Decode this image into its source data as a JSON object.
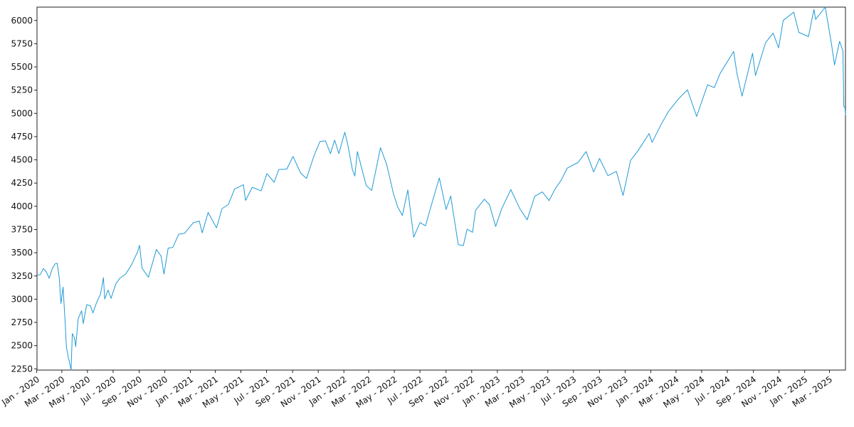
{
  "chart_data": {
    "type": "line",
    "title": "",
    "xlabel": "",
    "ylabel": "",
    "x_range": [
      "2020-01-02",
      "2025-04-08"
    ],
    "ylim": [
      2237,
      6144
    ],
    "y_ticks": [
      2250,
      2500,
      2750,
      3000,
      3250,
      3500,
      3750,
      4000,
      4250,
      4500,
      4750,
      5000,
      5250,
      5500,
      5750,
      6000
    ],
    "x_ticks": [
      {
        "date": "2020-01-01",
        "label": "Jan - 2020"
      },
      {
        "date": "2020-03-01",
        "label": "Mar - 2020"
      },
      {
        "date": "2020-05-01",
        "label": "May - 2020"
      },
      {
        "date": "2020-07-01",
        "label": "Jul - 2020"
      },
      {
        "date": "2020-09-01",
        "label": "Sep - 2020"
      },
      {
        "date": "2020-11-01",
        "label": "Nov - 2020"
      },
      {
        "date": "2021-01-01",
        "label": "Jan - 2021"
      },
      {
        "date": "2021-03-01",
        "label": "Mar - 2021"
      },
      {
        "date": "2021-05-01",
        "label": "May - 2021"
      },
      {
        "date": "2021-07-01",
        "label": "Jul - 2021"
      },
      {
        "date": "2021-09-01",
        "label": "Sep - 2021"
      },
      {
        "date": "2021-11-01",
        "label": "Nov - 2021"
      },
      {
        "date": "2022-01-01",
        "label": "Jan - 2022"
      },
      {
        "date": "2022-03-01",
        "label": "Mar - 2022"
      },
      {
        "date": "2022-05-01",
        "label": "May - 2022"
      },
      {
        "date": "2022-07-01",
        "label": "Jul - 2022"
      },
      {
        "date": "2022-09-01",
        "label": "Sep - 2022"
      },
      {
        "date": "2022-11-01",
        "label": "Nov - 2022"
      },
      {
        "date": "2023-01-01",
        "label": "Jan - 2023"
      },
      {
        "date": "2023-03-01",
        "label": "Mar - 2023"
      },
      {
        "date": "2023-05-01",
        "label": "May - 2023"
      },
      {
        "date": "2023-07-01",
        "label": "Jul - 2023"
      },
      {
        "date": "2023-09-01",
        "label": "Sep - 2023"
      },
      {
        "date": "2023-11-01",
        "label": "Nov - 2023"
      },
      {
        "date": "2024-01-01",
        "label": "Jan - 2024"
      },
      {
        "date": "2024-03-01",
        "label": "Mar - 2024"
      },
      {
        "date": "2024-05-01",
        "label": "May - 2024"
      },
      {
        "date": "2024-07-01",
        "label": "Jul - 2024"
      },
      {
        "date": "2024-09-01",
        "label": "Sep - 2024"
      },
      {
        "date": "2024-11-01",
        "label": "Nov - 2024"
      },
      {
        "date": "2025-01-01",
        "label": "Jan - 2025"
      },
      {
        "date": "2025-03-01",
        "label": "Mar - 2025"
      }
    ],
    "grid": false,
    "legend": "none",
    "series": [
      {
        "color": "#1f9ad6",
        "points": [
          [
            "2020-01-02",
            3258
          ],
          [
            "2020-01-10",
            3265
          ],
          [
            "2020-01-17",
            3330
          ],
          [
            "2020-01-24",
            3295
          ],
          [
            "2020-01-31",
            3225
          ],
          [
            "2020-02-07",
            3328
          ],
          [
            "2020-02-14",
            3380
          ],
          [
            "2020-02-19",
            3386
          ],
          [
            "2020-02-24",
            3225
          ],
          [
            "2020-02-28",
            2954
          ],
          [
            "2020-03-04",
            3130
          ],
          [
            "2020-03-09",
            2746
          ],
          [
            "2020-03-12",
            2480
          ],
          [
            "2020-03-16",
            2386
          ],
          [
            "2020-03-20",
            2305
          ],
          [
            "2020-03-23",
            2237
          ],
          [
            "2020-03-26",
            2630
          ],
          [
            "2020-03-31",
            2585
          ],
          [
            "2020-04-03",
            2489
          ],
          [
            "2020-04-09",
            2790
          ],
          [
            "2020-04-17",
            2875
          ],
          [
            "2020-04-21",
            2737
          ],
          [
            "2020-04-29",
            2940
          ],
          [
            "2020-05-08",
            2930
          ],
          [
            "2020-05-14",
            2852
          ],
          [
            "2020-05-22",
            2955
          ],
          [
            "2020-06-01",
            3055
          ],
          [
            "2020-06-08",
            3232
          ],
          [
            "2020-06-11",
            3002
          ],
          [
            "2020-06-19",
            3098
          ],
          [
            "2020-06-26",
            3009
          ],
          [
            "2020-07-08",
            3170
          ],
          [
            "2020-07-17",
            3225
          ],
          [
            "2020-07-31",
            3271
          ],
          [
            "2020-08-14",
            3372
          ],
          [
            "2020-08-28",
            3508
          ],
          [
            "2020-09-02",
            3580
          ],
          [
            "2020-09-08",
            3332
          ],
          [
            "2020-09-23",
            3237
          ],
          [
            "2020-10-12",
            3535
          ],
          [
            "2020-10-23",
            3465
          ],
          [
            "2020-10-30",
            3270
          ],
          [
            "2020-11-09",
            3550
          ],
          [
            "2020-11-20",
            3557
          ],
          [
            "2020-12-04",
            3699
          ],
          [
            "2020-12-18",
            3709
          ],
          [
            "2021-01-08",
            3824
          ],
          [
            "2021-01-22",
            3841
          ],
          [
            "2021-01-29",
            3714
          ],
          [
            "2021-02-12",
            3934
          ],
          [
            "2021-03-04",
            3768
          ],
          [
            "2021-03-17",
            3974
          ],
          [
            "2021-04-01",
            4019
          ],
          [
            "2021-04-16",
            4185
          ],
          [
            "2021-05-07",
            4232
          ],
          [
            "2021-05-12",
            4063
          ],
          [
            "2021-05-28",
            4204
          ],
          [
            "2021-06-18",
            4166
          ],
          [
            "2021-07-02",
            4352
          ],
          [
            "2021-07-19",
            4258
          ],
          [
            "2021-07-30",
            4395
          ],
          [
            "2021-08-18",
            4400
          ],
          [
            "2021-09-02",
            4537
          ],
          [
            "2021-09-20",
            4358
          ],
          [
            "2021-10-04",
            4300
          ],
          [
            "2021-10-22",
            4545
          ],
          [
            "2021-11-05",
            4697
          ],
          [
            "2021-11-18",
            4705
          ],
          [
            "2021-11-30",
            4567
          ],
          [
            "2021-12-10",
            4712
          ],
          [
            "2021-12-20",
            4568
          ],
          [
            "2022-01-03",
            4797
          ],
          [
            "2022-01-10",
            4670
          ],
          [
            "2022-01-21",
            4398
          ],
          [
            "2022-01-27",
            4326
          ],
          [
            "2022-02-02",
            4589
          ],
          [
            "2022-02-23",
            4225
          ],
          [
            "2022-03-08",
            4170
          ],
          [
            "2022-03-29",
            4631
          ],
          [
            "2022-04-13",
            4446
          ],
          [
            "2022-04-29",
            4132
          ],
          [
            "2022-05-09",
            3991
          ],
          [
            "2022-05-20",
            3901
          ],
          [
            "2022-06-02",
            4176
          ],
          [
            "2022-06-16",
            3667
          ],
          [
            "2022-07-01",
            3825
          ],
          [
            "2022-07-14",
            3790
          ],
          [
            "2022-08-02",
            4091
          ],
          [
            "2022-08-16",
            4305
          ],
          [
            "2022-09-01",
            3966
          ],
          [
            "2022-09-12",
            4110
          ],
          [
            "2022-09-30",
            3586
          ],
          [
            "2022-10-12",
            3577
          ],
          [
            "2022-10-21",
            3753
          ],
          [
            "2022-11-03",
            3720
          ],
          [
            "2022-11-10",
            3956
          ],
          [
            "2022-12-01",
            4076
          ],
          [
            "2022-12-13",
            4019
          ],
          [
            "2022-12-28",
            3783
          ],
          [
            "2023-01-11",
            3970
          ],
          [
            "2023-02-02",
            4180
          ],
          [
            "2023-02-24",
            3970
          ],
          [
            "2023-03-13",
            3855
          ],
          [
            "2023-03-31",
            4109
          ],
          [
            "2023-04-18",
            4155
          ],
          [
            "2023-05-04",
            4061
          ],
          [
            "2023-05-19",
            4192
          ],
          [
            "2023-06-02",
            4282
          ],
          [
            "2023-06-16",
            4410
          ],
          [
            "2023-07-12",
            4472
          ],
          [
            "2023-07-31",
            4589
          ],
          [
            "2023-08-18",
            4370
          ],
          [
            "2023-09-01",
            4515
          ],
          [
            "2023-09-21",
            4330
          ],
          [
            "2023-10-11",
            4376
          ],
          [
            "2023-10-27",
            4117
          ],
          [
            "2023-11-14",
            4495
          ],
          [
            "2023-12-01",
            4594
          ],
          [
            "2023-12-28",
            4783
          ],
          [
            "2024-01-04",
            4688
          ],
          [
            "2024-01-24",
            4868
          ],
          [
            "2024-02-12",
            5021
          ],
          [
            "2024-03-07",
            5157
          ],
          [
            "2024-03-28",
            5254
          ],
          [
            "2024-04-19",
            4967
          ],
          [
            "2024-05-15",
            5308
          ],
          [
            "2024-05-31",
            5277
          ],
          [
            "2024-06-14",
            5431
          ],
          [
            "2024-07-16",
            5667
          ],
          [
            "2024-07-24",
            5427
          ],
          [
            "2024-08-05",
            5186
          ],
          [
            "2024-08-30",
            5648
          ],
          [
            "2024-09-06",
            5408
          ],
          [
            "2024-09-30",
            5762
          ],
          [
            "2024-10-18",
            5864
          ],
          [
            "2024-10-31",
            5705
          ],
          [
            "2024-11-11",
            6001
          ],
          [
            "2024-12-06",
            6090
          ],
          [
            "2024-12-18",
            5872
          ],
          [
            "2025-01-10",
            5827
          ],
          [
            "2025-01-23",
            6119
          ],
          [
            "2025-01-27",
            6012
          ],
          [
            "2025-02-19",
            6144
          ],
          [
            "2025-03-06",
            5738
          ],
          [
            "2025-03-13",
            5521
          ],
          [
            "2025-03-25",
            5776
          ],
          [
            "2025-04-02",
            5671
          ],
          [
            "2025-04-04",
            5074
          ],
          [
            "2025-04-07",
            5062
          ],
          [
            "2025-04-08",
            4982
          ]
        ]
      }
    ]
  }
}
